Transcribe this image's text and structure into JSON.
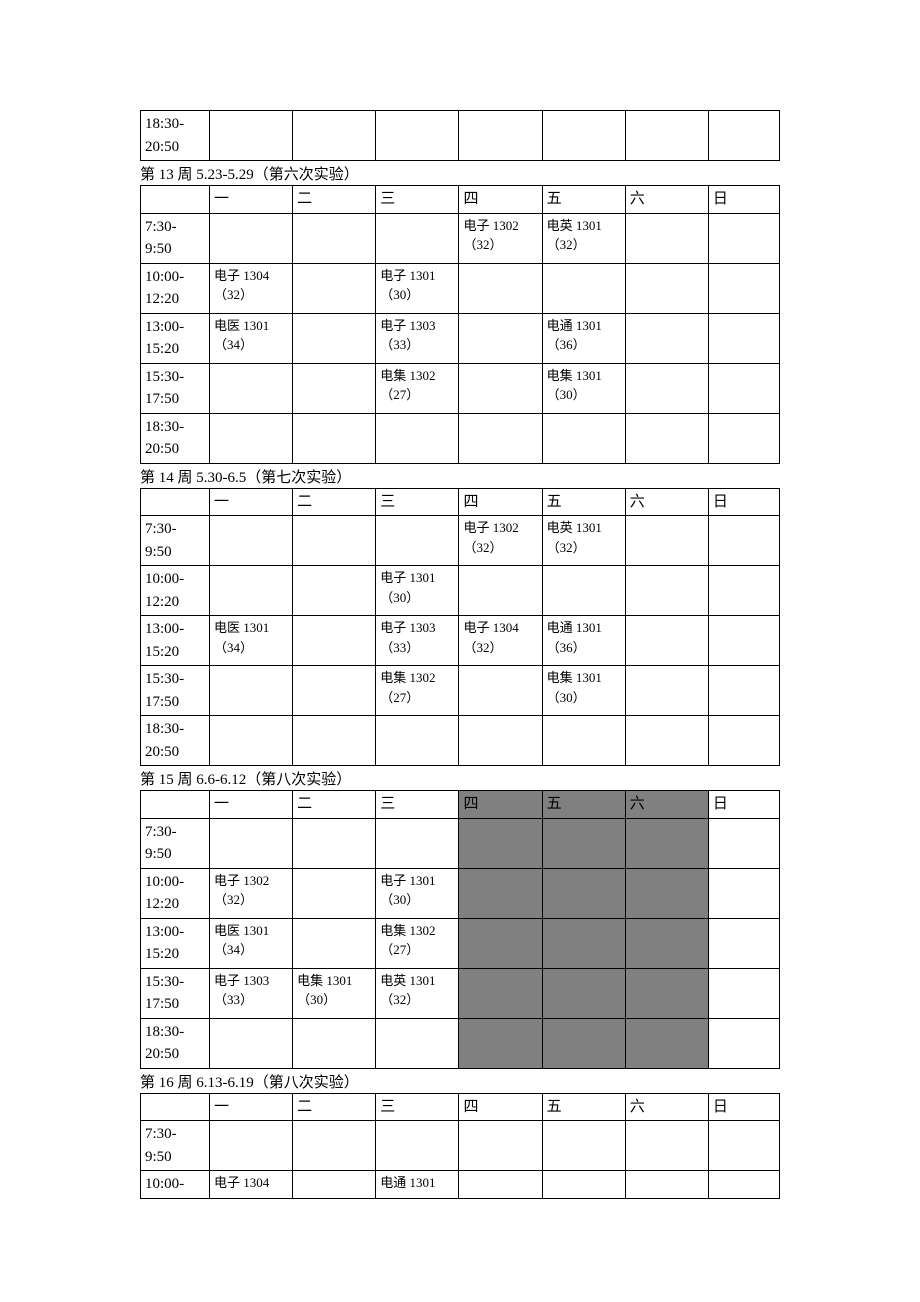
{
  "colors": {
    "border": "#000000",
    "shaded": "#808080",
    "background": "#ffffff",
    "text": "#000000"
  },
  "day_headers": [
    "一",
    "二",
    "三",
    "四",
    "五",
    "六",
    "日"
  ],
  "time_slots": [
    "7:30-9:50",
    "10:00-12:20",
    "13:00-15:20",
    "15:30-17:50",
    "18:30-20:50"
  ],
  "fragment_top": {
    "rows": [
      {
        "time": "18:30-20:50",
        "cells": [
          "",
          "",
          "",
          "",
          "",
          "",
          ""
        ]
      }
    ]
  },
  "weeks": [
    {
      "title": "第 13 周  5.23-5.29（第六次实验）",
      "shaded_days": [],
      "rows": [
        {
          "time": "7:30-9:50",
          "cells": [
            "",
            "",
            "",
            "电子 1302\n（32）",
            "电英 1301\n（32）",
            "",
            ""
          ]
        },
        {
          "time": "10:00-12:20",
          "cells": [
            "电子 1304\n（32）",
            "",
            "电子 1301\n（30）",
            "",
            "",
            "",
            ""
          ]
        },
        {
          "time": "13:00-15:20",
          "cells": [
            "电医 1301\n（34）",
            "",
            "电子 1303\n（33）",
            "",
            "电通 1301\n（36）",
            "",
            ""
          ]
        },
        {
          "time": "15:30-17:50",
          "cells": [
            "",
            "",
            "电集 1302\n（27）",
            "",
            "电集 1301\n（30）",
            "",
            ""
          ]
        },
        {
          "time": "18:30-20:50",
          "cells": [
            "",
            "",
            "",
            "",
            "",
            "",
            ""
          ]
        }
      ]
    },
    {
      "title": "第 14 周  5.30-6.5（第七次实验）",
      "shaded_days": [],
      "rows": [
        {
          "time": "7:30-9:50",
          "cells": [
            "",
            "",
            "",
            "电子 1302\n（32）",
            "电英 1301\n（32）",
            "",
            ""
          ]
        },
        {
          "time": "10:00-12:20",
          "cells": [
            "",
            "",
            "电子 1301\n（30）",
            "",
            "",
            "",
            ""
          ]
        },
        {
          "time": "13:00-15:20",
          "cells": [
            "电医 1301\n（34）",
            "",
            "电子 1303\n（33）",
            "电子 1304\n（32）",
            "电通 1301\n（36）",
            "",
            ""
          ]
        },
        {
          "time": "15:30-17:50",
          "cells": [
            "",
            "",
            "电集 1302\n（27）",
            "",
            "电集 1301\n（30）",
            "",
            ""
          ]
        },
        {
          "time": "18:30-20:50",
          "cells": [
            "",
            "",
            "",
            "",
            "",
            "",
            ""
          ]
        }
      ]
    },
    {
      "title": "第 15 周  6.6-6.12（第八次实验）",
      "shaded_days": [
        3,
        4,
        5
      ],
      "rows": [
        {
          "time": "7:30-9:50",
          "cells": [
            "",
            "",
            "",
            "",
            "",
            "",
            ""
          ]
        },
        {
          "time": "10:00-12:20",
          "cells": [
            "电子 1302\n（32）",
            "",
            "电子 1301\n（30）",
            "",
            "",
            "",
            ""
          ]
        },
        {
          "time": "13:00-15:20",
          "cells": [
            "电医 1301\n（34）",
            "",
            "电集 1302\n（27）",
            "",
            "",
            "",
            ""
          ]
        },
        {
          "time": "15:30-17:50",
          "cells": [
            "电子 1303\n（33）",
            "电集 1301\n（30）",
            "电英 1301\n（32）",
            "",
            "",
            "",
            ""
          ]
        },
        {
          "time": "18:30-20:50",
          "cells": [
            "",
            "",
            "",
            "",
            "",
            "",
            ""
          ]
        }
      ]
    },
    {
      "title": "第 16 周  6.13-6.19（第八次实验）",
      "shaded_days": [],
      "rows": [
        {
          "time": "7:30-9:50",
          "cells": [
            "",
            "",
            "",
            "",
            "",
            "",
            ""
          ]
        },
        {
          "time": "10:00-",
          "cells": [
            "电子 1304",
            "",
            "电通 1301",
            "",
            "",
            "",
            ""
          ]
        }
      ]
    }
  ]
}
